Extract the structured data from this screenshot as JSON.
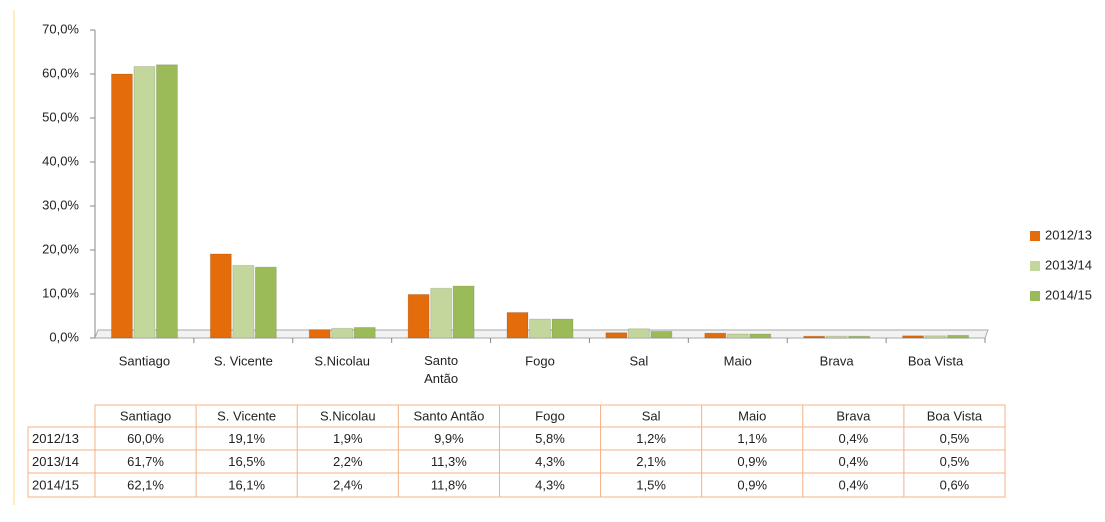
{
  "chart_data": {
    "type": "bar",
    "categories": [
      "Santiago",
      "S. Vicente",
      "S.Nicolau",
      "Santo Antão",
      "Fogo",
      "Sal",
      "Maio",
      "Brava",
      "Boa Vista"
    ],
    "series": [
      {
        "name": "2012/13",
        "color": "#e46c0a",
        "values": [
          60.0,
          19.1,
          1.9,
          9.9,
          5.8,
          1.2,
          1.1,
          0.4,
          0.5
        ],
        "value_labels": [
          "60,0%",
          "19,1%",
          "1,9%",
          "9,9%",
          "5,8%",
          "1,2%",
          "1,1%",
          "0,4%",
          "0,5%"
        ]
      },
      {
        "name": "2013/14",
        "color": "#c3d69b",
        "values": [
          61.7,
          16.5,
          2.2,
          11.3,
          4.3,
          2.1,
          0.9,
          0.4,
          0.5
        ],
        "value_labels": [
          "61,7%",
          "16,5%",
          "2,2%",
          "11,3%",
          "4,3%",
          "2,1%",
          "0,9%",
          "0,4%",
          "0,5%"
        ]
      },
      {
        "name": "2014/15",
        "color": "#9bbb59",
        "values": [
          62.1,
          16.1,
          2.4,
          11.8,
          4.3,
          1.5,
          0.9,
          0.4,
          0.6
        ],
        "value_labels": [
          "62,1%",
          "16,1%",
          "2,4%",
          "11,8%",
          "4,3%",
          "1,5%",
          "0,9%",
          "0,4%",
          "0,6%"
        ]
      }
    ],
    "ylim": [
      0,
      70
    ],
    "yticks": [
      {
        "value": 0,
        "label": "0,0%"
      },
      {
        "value": 10,
        "label": "10,0%"
      },
      {
        "value": 20,
        "label": "20,0%"
      },
      {
        "value": 30,
        "label": "30,0%"
      },
      {
        "value": 40,
        "label": "40,0%"
      },
      {
        "value": 50,
        "label": "50,0%"
      },
      {
        "value": 60,
        "label": "60,0%"
      },
      {
        "value": 70,
        "label": "70,0%"
      }
    ],
    "grid": false,
    "legend": "right"
  }
}
